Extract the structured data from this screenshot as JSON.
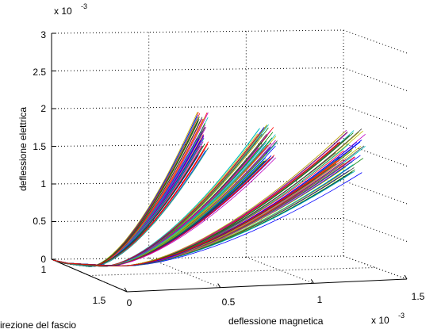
{
  "chart_data": {
    "type": "line",
    "view": "3d",
    "title": "",
    "xlabel": "deflessione magnetica",
    "ylabel": "irezione del fascio",
    "zlabel": "deflessione elettrica",
    "x_multiplier": "x 10",
    "x_multiplier_exponent": "-3",
    "z_multiplier": "x 10",
    "z_multiplier_exponent": "-3",
    "xticks": [
      "0",
      "0.5",
      "1",
      "1.5"
    ],
    "yticks": [
      "1",
      "1.5"
    ],
    "zticks": [
      "0",
      "0.5",
      "1",
      "1.5",
      "2",
      "2.5",
      "3"
    ],
    "xlim": [
      0,
      1.5
    ],
    "zlim": [
      0,
      3
    ],
    "grid": true,
    "legend": "none",
    "note": "dense bundle of many colored trajectories forming three fans",
    "bundles": [
      {
        "end_deflessione_magnetica": 0.55,
        "end_deflessione_elettrica_range": [
          1.6,
          2.2
        ]
      },
      {
        "end_deflessione_magnetica": 0.9,
        "end_deflessione_elettrica_range": [
          1.5,
          2.0
        ]
      },
      {
        "end_deflessione_magnetica": 1.35,
        "end_deflessione_elettrica_range": [
          1.3,
          1.9
        ]
      }
    ],
    "colors": [
      "#0000ff",
      "#008000",
      "#ff0000",
      "#00bfbf",
      "#bf00bf",
      "#bfbf00",
      "#404040"
    ]
  }
}
